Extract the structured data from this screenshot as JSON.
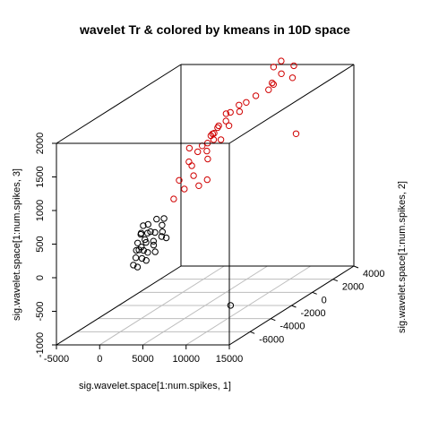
{
  "chart_data": {
    "type": "scatter",
    "title": "wavelet Tr & colored by kmeans in 10D space",
    "xlabel": "sig.wavelet.space[1:num.spikes, 1]",
    "ylabel": "sig.wavelet.space[1:num.spikes, 2]",
    "zlabel": "sig.wavelet.space[1:num.spikes, 3]",
    "xlim": [
      -5000,
      15000
    ],
    "ylim": [
      -8000,
      4000
    ],
    "zlim": [
      -1000,
      2000
    ],
    "x_ticks": [
      "-5000",
      "0",
      "5000",
      "10000",
      "15000"
    ],
    "y_ticks": [
      "-6000",
      "-4000",
      "-2000",
      "0",
      "2000",
      "4000"
    ],
    "z_ticks": [
      "-1000",
      "-500",
      "0",
      "500",
      "1000",
      "1500",
      "2000"
    ],
    "grid": "floor",
    "marker": "open-circle",
    "colors": {
      "cluster1": "#d00000",
      "cluster2": "#000000"
    },
    "series": [
      {
        "color": "#d00000",
        "points": [
          {
            "x": 7400,
            "y": 2600,
            "z": 2100
          },
          {
            "x": 7800,
            "y": 3000,
            "z": 2150
          },
          {
            "x": 8300,
            "y": 2600,
            "z": 2000
          },
          {
            "x": 8900,
            "y": 3300,
            "z": 2050
          },
          {
            "x": 8300,
            "y": 1700,
            "z": 1950
          },
          {
            "x": 9100,
            "y": 3000,
            "z": 1900
          },
          {
            "x": 6900,
            "y": 3000,
            "z": 1800
          },
          {
            "x": 7300,
            "y": 2200,
            "z": 1800
          },
          {
            "x": 6300,
            "y": 1800,
            "z": 1750
          },
          {
            "x": 5800,
            "y": 1300,
            "z": 1700
          },
          {
            "x": 6100,
            "y": 400,
            "z": 1650
          },
          {
            "x": 5200,
            "y": 1100,
            "z": 1680
          },
          {
            "x": 4800,
            "y": 600,
            "z": 1620
          },
          {
            "x": 4300,
            "y": 600,
            "z": 1600
          },
          {
            "x": 5000,
            "y": 0,
            "z": 1550
          },
          {
            "x": 5600,
            "y": -200,
            "z": 1500
          },
          {
            "x": 4400,
            "y": -300,
            "z": 1480
          },
          {
            "x": 3800,
            "y": 300,
            "z": 1450
          },
          {
            "x": 4100,
            "y": -700,
            "z": 1400
          },
          {
            "x": 4900,
            "y": -1100,
            "z": 1380
          },
          {
            "x": 5500,
            "y": -900,
            "z": 1360
          },
          {
            "x": 3100,
            "y": 300,
            "z": 1330
          },
          {
            "x": 2800,
            "y": 700,
            "z": 1300
          },
          {
            "x": 3600,
            "y": -600,
            "z": 1280
          },
          {
            "x": 4600,
            "y": -1500,
            "z": 1250
          },
          {
            "x": 3300,
            "y": -1300,
            "z": 1220
          },
          {
            "x": 2500,
            "y": -200,
            "z": 1200
          },
          {
            "x": 5300,
            "y": -2000,
            "z": 1180
          },
          {
            "x": 3700,
            "y": -2200,
            "z": 1100
          },
          {
            "x": 2400,
            "y": -1400,
            "z": 1080
          },
          {
            "x": 4500,
            "y": -2700,
            "z": 1000
          },
          {
            "x": 3200,
            "y": -3000,
            "z": 960
          },
          {
            "x": 6200,
            "y": -2800,
            "z": 950
          },
          {
            "x": 5700,
            "y": -3200,
            "z": 900
          },
          {
            "x": 4000,
            "y": -4200,
            "z": 800
          },
          {
            "x": 4400,
            "y": -3500,
            "z": 880
          },
          {
            "x": 3900,
            "y": -2600,
            "z": 1400
          },
          {
            "x": 13600,
            "y": -400,
            "z": 1400
          }
        ]
      },
      {
        "color": "#000000",
        "points": [
          {
            "x": 2000,
            "y": -5000,
            "z": 500
          },
          {
            "x": 2500,
            "y": -4600,
            "z": 540
          },
          {
            "x": 3000,
            "y": -4300,
            "z": 520
          },
          {
            "x": 3500,
            "y": -4900,
            "z": 480
          },
          {
            "x": 1800,
            "y": -5500,
            "z": 420
          },
          {
            "x": 2300,
            "y": -5300,
            "z": 400
          },
          {
            "x": 2800,
            "y": -5000,
            "z": 380
          },
          {
            "x": 3300,
            "y": -4700,
            "z": 360
          },
          {
            "x": 3800,
            "y": -5200,
            "z": 340
          },
          {
            "x": 2000,
            "y": -6000,
            "z": 320
          },
          {
            "x": 2600,
            "y": -5700,
            "z": 300
          },
          {
            "x": 3100,
            "y": -5400,
            "z": 290
          },
          {
            "x": 3600,
            "y": -5800,
            "z": 270
          },
          {
            "x": 2200,
            "y": -6300,
            "z": 240
          },
          {
            "x": 2800,
            "y": -6100,
            "z": 220
          },
          {
            "x": 3400,
            "y": -6200,
            "z": 200
          },
          {
            "x": 3900,
            "y": -5900,
            "z": 180
          },
          {
            "x": 2500,
            "y": -6600,
            "z": 160
          },
          {
            "x": 3100,
            "y": -6500,
            "z": 140
          },
          {
            "x": 3700,
            "y": -6600,
            "z": 120
          },
          {
            "x": 2700,
            "y": -7000,
            "z": 90
          },
          {
            "x": 3300,
            "y": -7100,
            "z": 70
          },
          {
            "x": 3000,
            "y": -5600,
            "z": 450
          },
          {
            "x": 2400,
            "y": -5800,
            "z": 560
          },
          {
            "x": 4100,
            "y": -5000,
            "z": 300
          },
          {
            "x": 1900,
            "y": -5800,
            "z": 200
          },
          {
            "x": 3500,
            "y": -6900,
            "z": 350
          },
          {
            "x": 3200,
            "y": -6300,
            "z": 400
          },
          {
            "x": 2600,
            "y": -6200,
            "z": 470
          },
          {
            "x": 13700,
            "y": -6800,
            "z": -530
          }
        ]
      }
    ]
  }
}
